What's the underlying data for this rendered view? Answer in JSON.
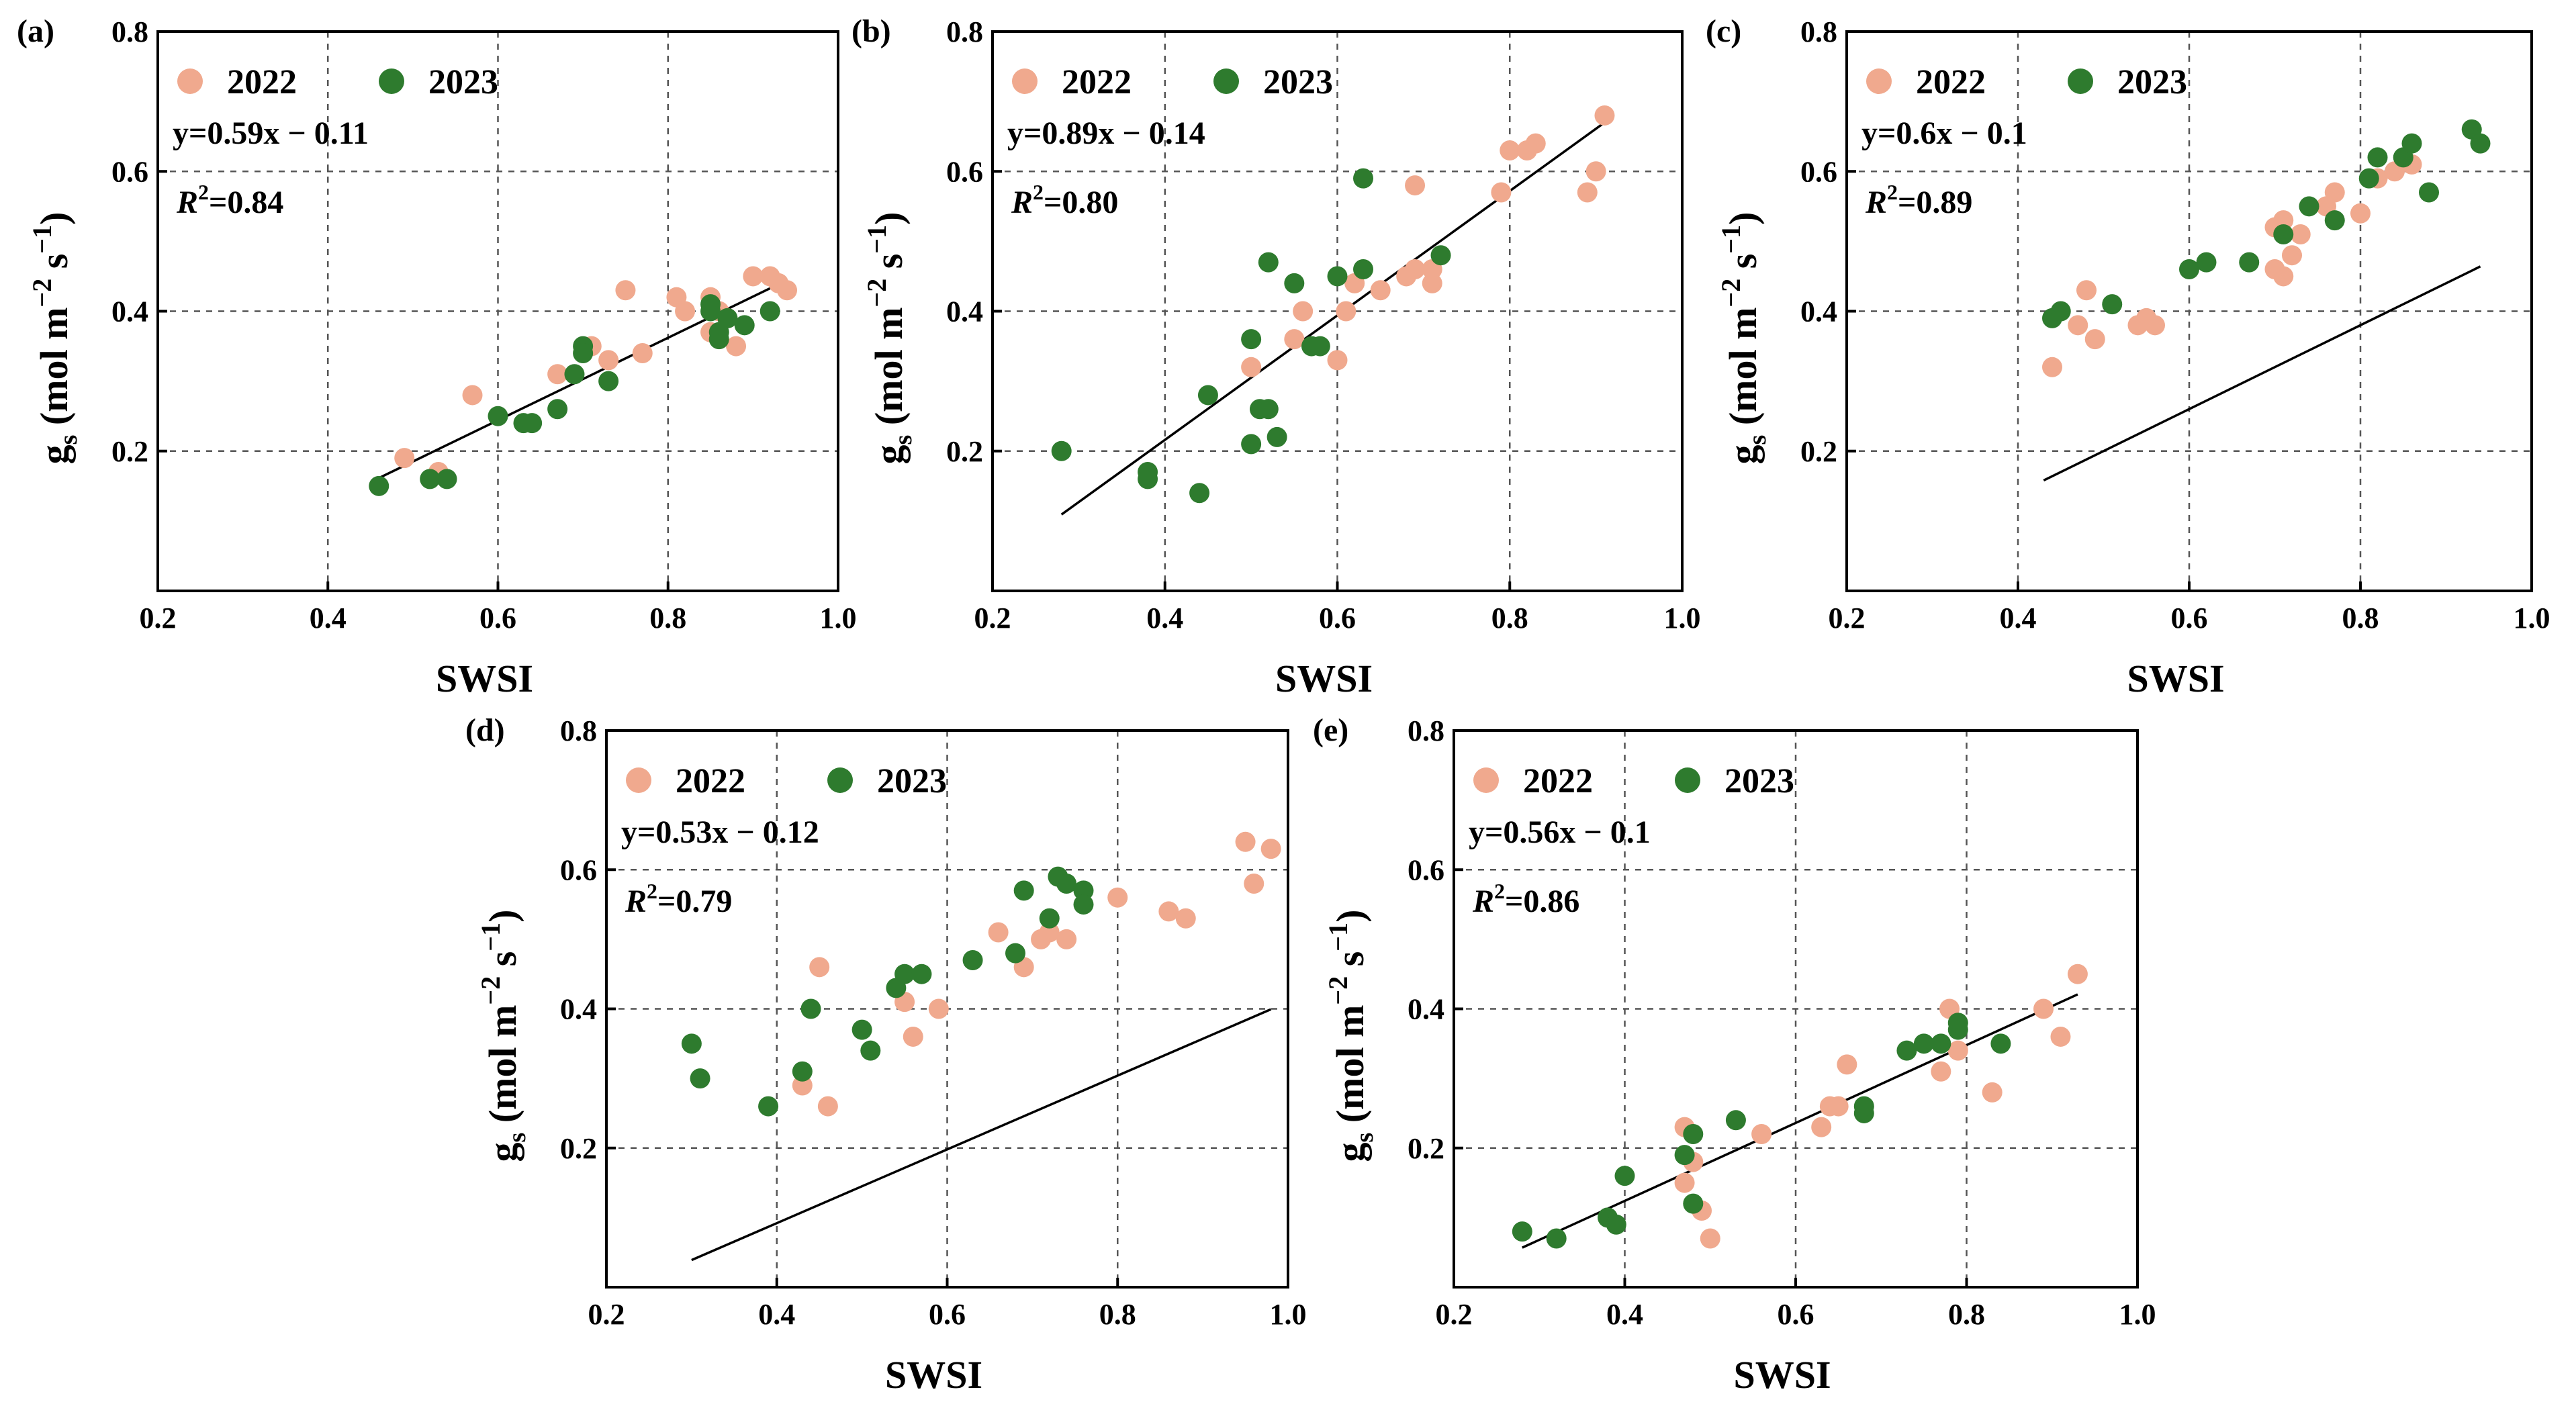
{
  "figure": {
    "colors": {
      "y2022": "#F0A98E",
      "y2023": "#2E7B2E",
      "fit": "#000000",
      "grid": "#555555"
    }
  },
  "chart_data": [
    {
      "panel": "(a)",
      "type": "scatter",
      "xlabel": "SWSI",
      "ylabel": "g_s (mol m^-2 s^-1)",
      "xlim": [
        0.2,
        1.0
      ],
      "ylim": [
        0.0,
        0.8
      ],
      "xticks": [
        "0.2",
        "0.4",
        "0.6",
        "0.8",
        "1.0"
      ],
      "yticks": [
        "0.2",
        "0.4",
        "0.6",
        "0.8"
      ],
      "grid": true,
      "legend": "top-left",
      "equation": "y=0.59x − 0.11",
      "r2": "=0.84",
      "fit": {
        "x": [
          0.46,
          0.94
        ]
      },
      "series": [
        {
          "name": "2022",
          "points": [
            [
              0.49,
              0.19
            ],
            [
              0.53,
              0.17
            ],
            [
              0.57,
              0.28
            ],
            [
              0.67,
              0.31
            ],
            [
              0.71,
              0.35
            ],
            [
              0.73,
              0.33
            ],
            [
              0.75,
              0.43
            ],
            [
              0.77,
              0.34
            ],
            [
              0.81,
              0.42
            ],
            [
              0.82,
              0.4
            ],
            [
              0.85,
              0.37
            ],
            [
              0.85,
              0.42
            ],
            [
              0.87,
              0.39
            ],
            [
              0.88,
              0.35
            ],
            [
              0.9,
              0.45
            ],
            [
              0.92,
              0.45
            ],
            [
              0.93,
              0.44
            ],
            [
              0.94,
              0.43
            ],
            [
              0.86,
              0.4
            ]
          ]
        },
        {
          "name": "2023",
          "points": [
            [
              0.46,
              0.15
            ],
            [
              0.52,
              0.16
            ],
            [
              0.54,
              0.16
            ],
            [
              0.6,
              0.25
            ],
            [
              0.63,
              0.24
            ],
            [
              0.64,
              0.24
            ],
            [
              0.67,
              0.26
            ],
            [
              0.69,
              0.31
            ],
            [
              0.7,
              0.35
            ],
            [
              0.7,
              0.34
            ],
            [
              0.73,
              0.3
            ],
            [
              0.85,
              0.4
            ],
            [
              0.86,
              0.36
            ],
            [
              0.86,
              0.37
            ],
            [
              0.87,
              0.39
            ],
            [
              0.89,
              0.38
            ],
            [
              0.92,
              0.4
            ],
            [
              0.85,
              0.41
            ]
          ]
        }
      ]
    },
    {
      "panel": "(b)",
      "type": "scatter",
      "xlabel": "SWSI",
      "ylabel": "g_s (mol m^-2 s^-1)",
      "xlim": [
        0.2,
        1.0
      ],
      "ylim": [
        0.0,
        0.8
      ],
      "xticks": [
        "0.2",
        "0.4",
        "0.6",
        "0.8",
        "1.0"
      ],
      "yticks": [
        "0.2",
        "0.4",
        "0.6",
        "0.8"
      ],
      "grid": true,
      "legend": "top-left",
      "equation": "y=0.89x − 0.14",
      "r2": "=0.80",
      "fit": {
        "x": [
          0.28,
          0.91
        ]
      },
      "series": [
        {
          "name": "2022",
          "points": [
            [
              0.5,
              0.32
            ],
            [
              0.55,
              0.36
            ],
            [
              0.56,
              0.4
            ],
            [
              0.6,
              0.33
            ],
            [
              0.61,
              0.4
            ],
            [
              0.62,
              0.44
            ],
            [
              0.65,
              0.43
            ],
            [
              0.68,
              0.45
            ],
            [
              0.69,
              0.46
            ],
            [
              0.69,
              0.58
            ],
            [
              0.71,
              0.44
            ],
            [
              0.71,
              0.46
            ],
            [
              0.79,
              0.57
            ],
            [
              0.8,
              0.63
            ],
            [
              0.82,
              0.63
            ],
            [
              0.83,
              0.64
            ],
            [
              0.89,
              0.57
            ],
            [
              0.9,
              0.6
            ],
            [
              0.91,
              0.68
            ]
          ]
        },
        {
          "name": "2023",
          "points": [
            [
              0.28,
              0.2
            ],
            [
              0.38,
              0.16
            ],
            [
              0.38,
              0.17
            ],
            [
              0.44,
              0.14
            ],
            [
              0.45,
              0.28
            ],
            [
              0.5,
              0.21
            ],
            [
              0.5,
              0.36
            ],
            [
              0.51,
              0.26
            ],
            [
              0.52,
              0.26
            ],
            [
              0.52,
              0.47
            ],
            [
              0.53,
              0.22
            ],
            [
              0.55,
              0.44
            ],
            [
              0.57,
              0.35
            ],
            [
              0.58,
              0.35
            ],
            [
              0.6,
              0.45
            ],
            [
              0.63,
              0.46
            ],
            [
              0.63,
              0.59
            ],
            [
              0.72,
              0.48
            ]
          ]
        }
      ]
    },
    {
      "panel": "(c)",
      "type": "scatter",
      "xlabel": "SWSI",
      "ylabel": "g_s (mol m^-2 s^-1)",
      "xlim": [
        0.2,
        1.0
      ],
      "ylim": [
        0.0,
        0.8
      ],
      "xticks": [
        "0.2",
        "0.4",
        "0.6",
        "0.8",
        "1.0"
      ],
      "yticks": [
        "0.2",
        "0.4",
        "0.6",
        "0.8"
      ],
      "grid": true,
      "legend": "top-left",
      "equation": "y=0.6x − 0.1",
      "r2": "=0.89",
      "fit": {
        "x": [
          0.43,
          0.94
        ]
      },
      "series": [
        {
          "name": "2022",
          "points": [
            [
              0.44,
              0.32
            ],
            [
              0.47,
              0.38
            ],
            [
              0.48,
              0.43
            ],
            [
              0.49,
              0.36
            ],
            [
              0.54,
              0.38
            ],
            [
              0.55,
              0.39
            ],
            [
              0.56,
              0.38
            ],
            [
              0.7,
              0.46
            ],
            [
              0.7,
              0.52
            ],
            [
              0.71,
              0.45
            ],
            [
              0.71,
              0.53
            ],
            [
              0.72,
              0.48
            ],
            [
              0.73,
              0.51
            ],
            [
              0.76,
              0.55
            ],
            [
              0.77,
              0.57
            ],
            [
              0.8,
              0.54
            ],
            [
              0.82,
              0.59
            ],
            [
              0.84,
              0.6
            ],
            [
              0.86,
              0.61
            ]
          ]
        },
        {
          "name": "2023",
          "points": [
            [
              0.44,
              0.39
            ],
            [
              0.45,
              0.4
            ],
            [
              0.51,
              0.41
            ],
            [
              0.6,
              0.46
            ],
            [
              0.62,
              0.47
            ],
            [
              0.67,
              0.47
            ],
            [
              0.71,
              0.51
            ],
            [
              0.74,
              0.55
            ],
            [
              0.77,
              0.53
            ],
            [
              0.81,
              0.59
            ],
            [
              0.82,
              0.62
            ],
            [
              0.85,
              0.62
            ],
            [
              0.86,
              0.64
            ],
            [
              0.88,
              0.57
            ],
            [
              0.93,
              0.66
            ],
            [
              0.94,
              0.64
            ]
          ]
        }
      ]
    },
    {
      "panel": "(d)",
      "type": "scatter",
      "xlabel": "SWSI",
      "ylabel": "g_s (mol m^-2 s^-1)",
      "xlim": [
        0.2,
        1.0
      ],
      "ylim": [
        0.0,
        0.8
      ],
      "xticks": [
        "0.2",
        "0.4",
        "0.6",
        "0.8",
        "1.0"
      ],
      "yticks": [
        "0.2",
        "0.4",
        "0.6",
        "0.8"
      ],
      "grid": true,
      "legend": "top-left",
      "equation": "y=0.53x  −  0.12",
      "r2": "=0.79",
      "fit": {
        "x": [
          0.3,
          0.98
        ]
      },
      "series": [
        {
          "name": "2022",
          "points": [
            [
              0.43,
              0.29
            ],
            [
              0.45,
              0.46
            ],
            [
              0.46,
              0.26
            ],
            [
              0.55,
              0.41
            ],
            [
              0.56,
              0.36
            ],
            [
              0.59,
              0.4
            ],
            [
              0.66,
              0.51
            ],
            [
              0.69,
              0.46
            ],
            [
              0.71,
              0.5
            ],
            [
              0.72,
              0.51
            ],
            [
              0.74,
              0.5
            ],
            [
              0.8,
              0.56
            ],
            [
              0.86,
              0.54
            ],
            [
              0.88,
              0.53
            ],
            [
              0.95,
              0.64
            ],
            [
              0.96,
              0.58
            ],
            [
              0.98,
              0.63
            ]
          ]
        },
        {
          "name": "2023",
          "points": [
            [
              0.3,
              0.35
            ],
            [
              0.31,
              0.3
            ],
            [
              0.39,
              0.26
            ],
            [
              0.43,
              0.31
            ],
            [
              0.44,
              0.4
            ],
            [
              0.5,
              0.37
            ],
            [
              0.51,
              0.34
            ],
            [
              0.54,
              0.43
            ],
            [
              0.55,
              0.45
            ],
            [
              0.57,
              0.45
            ],
            [
              0.63,
              0.47
            ],
            [
              0.68,
              0.48
            ],
            [
              0.69,
              0.57
            ],
            [
              0.72,
              0.53
            ],
            [
              0.73,
              0.59
            ],
            [
              0.74,
              0.58
            ],
            [
              0.76,
              0.57
            ],
            [
              0.76,
              0.55
            ]
          ]
        }
      ]
    },
    {
      "panel": "(e)",
      "type": "scatter",
      "xlabel": "SWSI",
      "ylabel": "g_s (mol m^-2 s^-1)",
      "xlim": [
        0.2,
        1.0
      ],
      "ylim": [
        0.0,
        0.8
      ],
      "xticks": [
        "0.2",
        "0.4",
        "0.6",
        "0.8",
        "1.0"
      ],
      "yticks": [
        "0.2",
        "0.4",
        "0.6",
        "0.8"
      ],
      "grid": true,
      "legend": "top-left",
      "equation": "y=0.56x − 0.1",
      "r2": "=0.86",
      "fit": {
        "x": [
          0.28,
          0.93
        ]
      },
      "series": [
        {
          "name": "2022",
          "points": [
            [
              0.47,
              0.23
            ],
            [
              0.47,
              0.15
            ],
            [
              0.48,
              0.18
            ],
            [
              0.49,
              0.11
            ],
            [
              0.5,
              0.07
            ],
            [
              0.56,
              0.22
            ],
            [
              0.63,
              0.23
            ],
            [
              0.64,
              0.26
            ],
            [
              0.65,
              0.26
            ],
            [
              0.66,
              0.32
            ],
            [
              0.77,
              0.31
            ],
            [
              0.78,
              0.4
            ],
            [
              0.79,
              0.34
            ],
            [
              0.83,
              0.28
            ],
            [
              0.89,
              0.4
            ],
            [
              0.91,
              0.36
            ],
            [
              0.93,
              0.45
            ]
          ]
        },
        {
          "name": "2023",
          "points": [
            [
              0.28,
              0.08
            ],
            [
              0.32,
              0.07
            ],
            [
              0.38,
              0.1
            ],
            [
              0.39,
              0.09
            ],
            [
              0.4,
              0.16
            ],
            [
              0.47,
              0.19
            ],
            [
              0.48,
              0.22
            ],
            [
              0.48,
              0.12
            ],
            [
              0.53,
              0.24
            ],
            [
              0.68,
              0.25
            ],
            [
              0.68,
              0.26
            ],
            [
              0.73,
              0.34
            ],
            [
              0.75,
              0.35
            ],
            [
              0.77,
              0.35
            ],
            [
              0.79,
              0.37
            ],
            [
              0.79,
              0.38
            ],
            [
              0.84,
              0.35
            ]
          ]
        }
      ]
    }
  ]
}
